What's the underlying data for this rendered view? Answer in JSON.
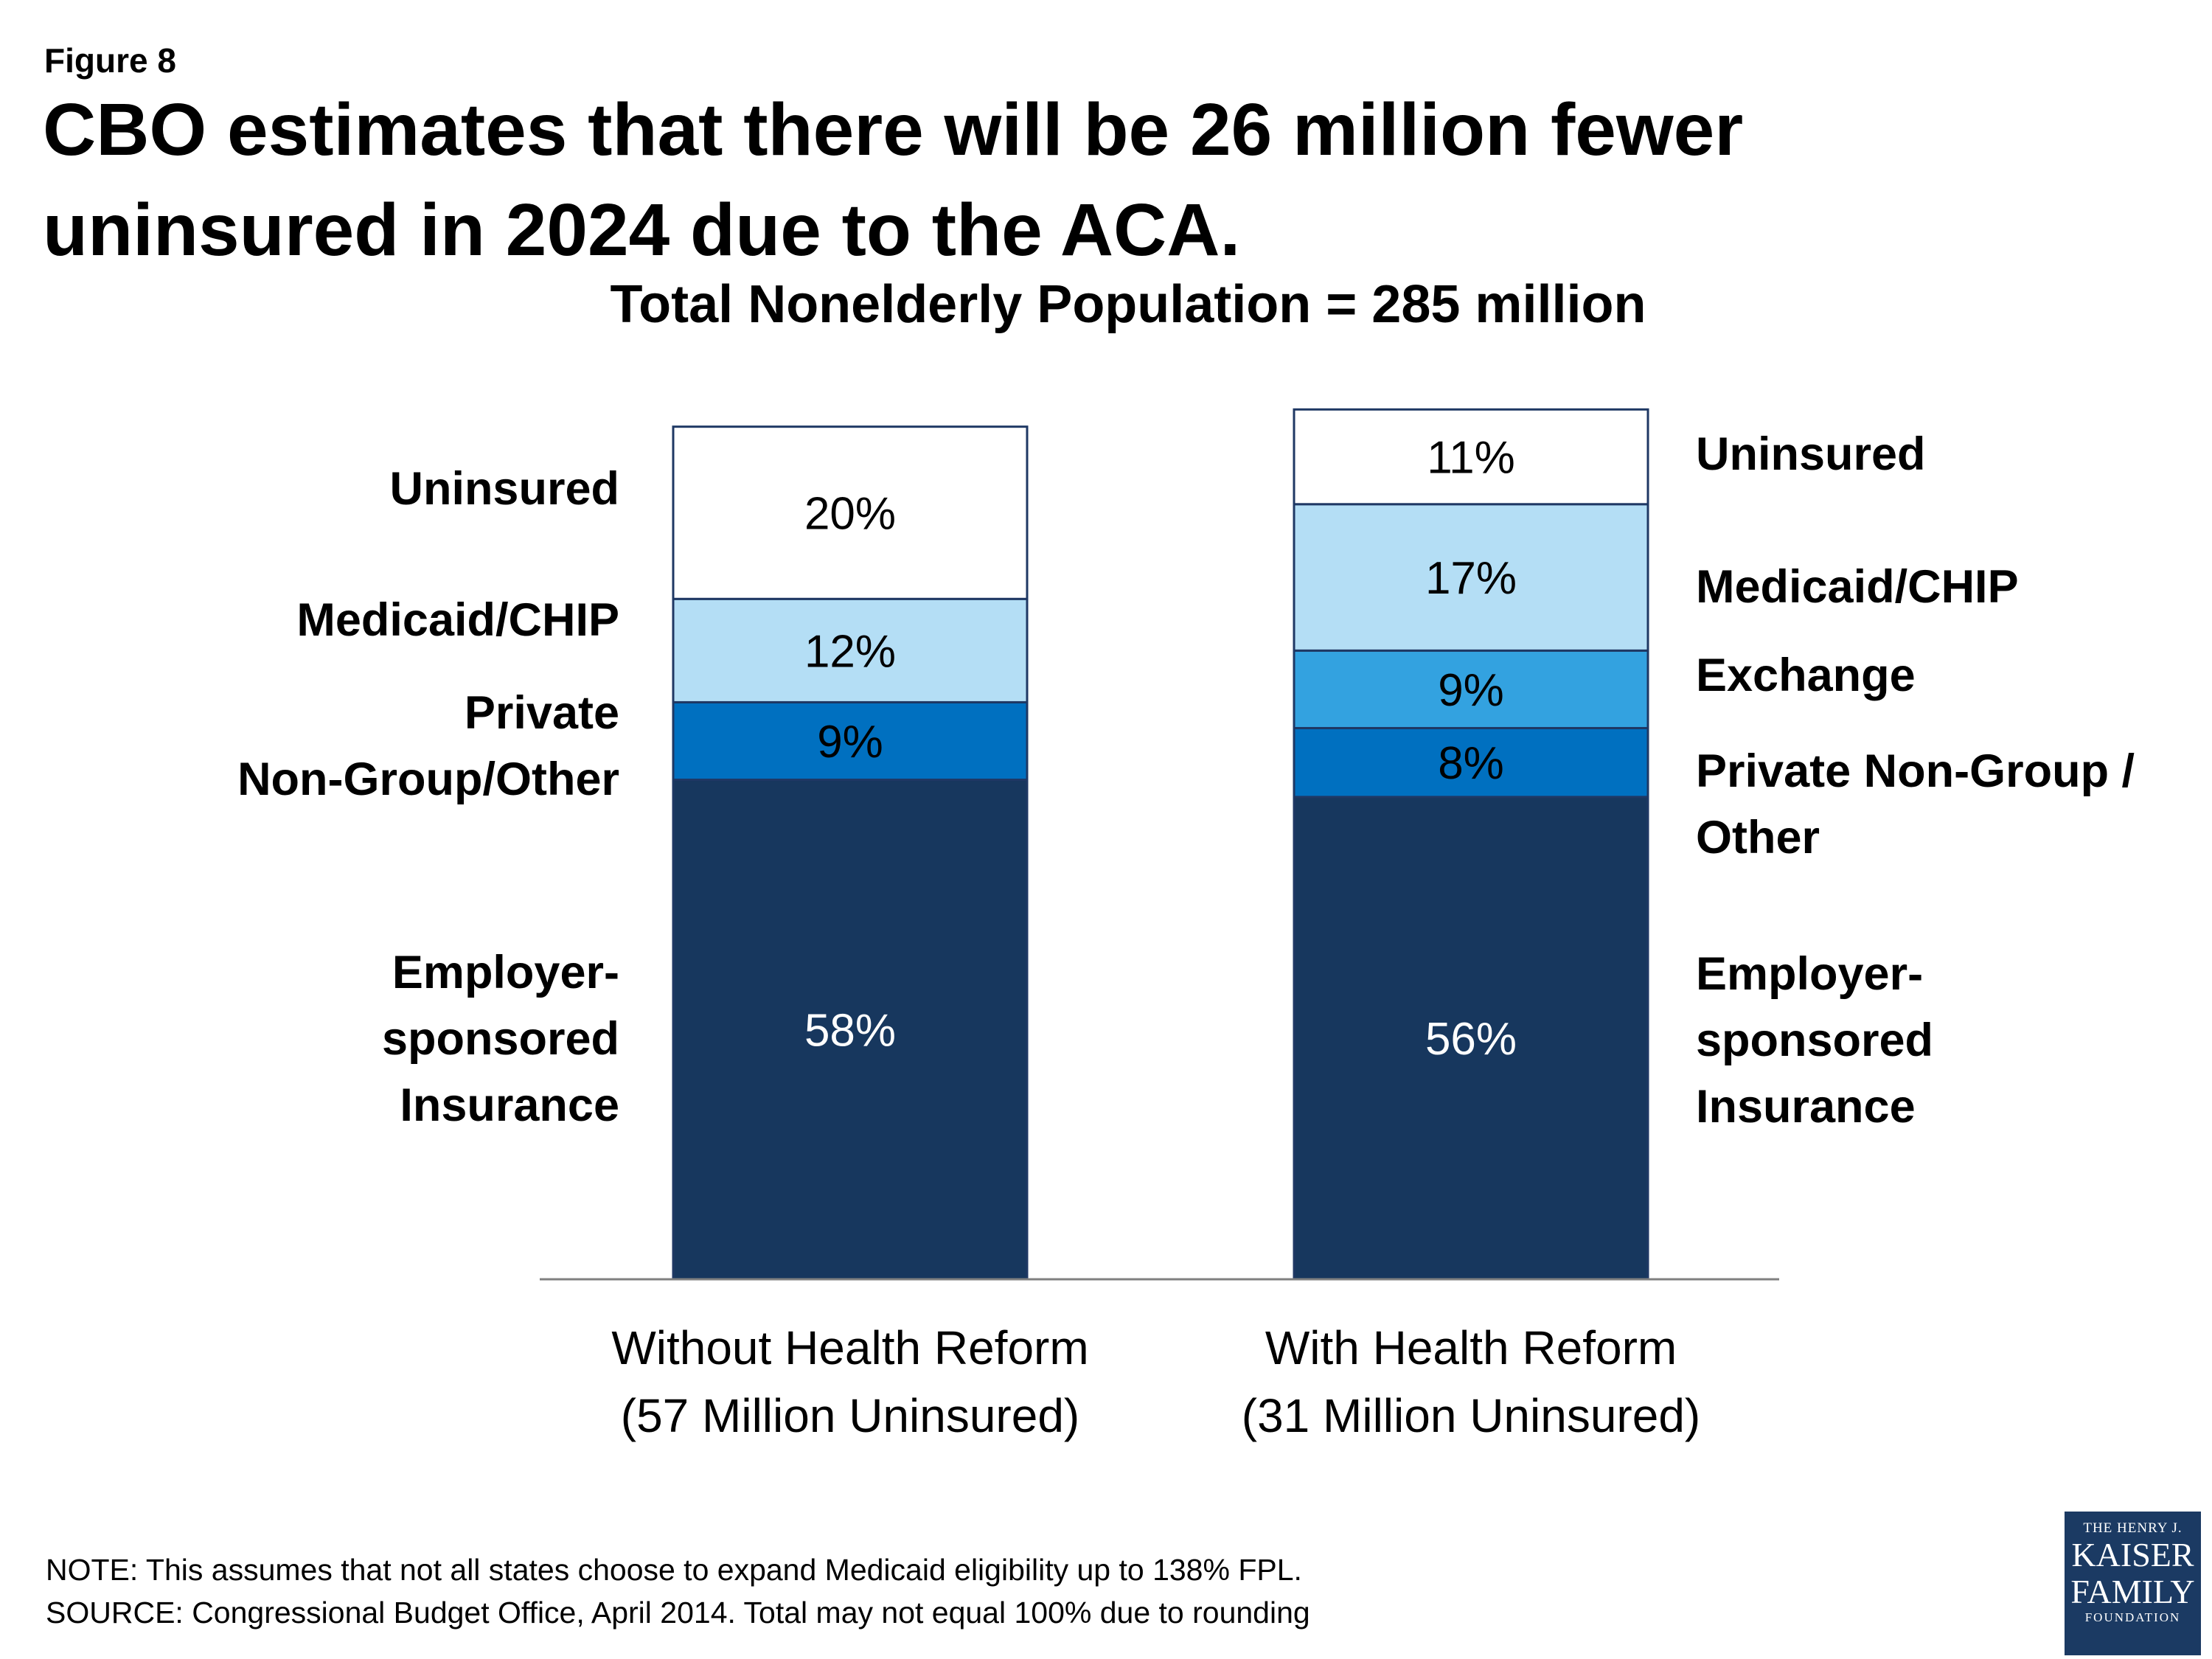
{
  "header": {
    "figure_label": "Figure 8",
    "title": "CBO estimates that there will be 26 million fewer uninsured in 2024 due to the ACA.",
    "subtitle": "Total Nonelderly Population = 285 million"
  },
  "chart_data": {
    "type": "bar",
    "stacked": true,
    "title": "Total Nonelderly Population = 285 million",
    "ylim": [
      0,
      100
    ],
    "categories": [
      [
        "Without Health Reform",
        "(57 Million Uninsured)"
      ],
      [
        "With Health Reform",
        "(31 Million Uninsured)"
      ]
    ],
    "series": [
      {
        "name": "Employer-sponsored Insurance",
        "values": [
          58,
          56
        ],
        "labels": [
          "58%",
          "56%"
        ],
        "color": "#17375e",
        "label_color": "#ffffff"
      },
      {
        "name": "Private Non-Group/Other",
        "values": [
          9,
          8
        ],
        "labels": [
          "9%",
          "8%"
        ],
        "color": "#0070c0",
        "label_color": "#000000"
      },
      {
        "name": "Exchange",
        "values": [
          0,
          9
        ],
        "labels": [
          "",
          "9%"
        ],
        "color": "#33a2e0",
        "label_color": "#000000"
      },
      {
        "name": "Medicaid/CHIP",
        "values": [
          12,
          17
        ],
        "labels": [
          "12%",
          "17%"
        ],
        "color": "#b4def5",
        "label_color": "#000000"
      },
      {
        "name": "Uninsured",
        "values": [
          20,
          11
        ],
        "labels": [
          "20%",
          "11%"
        ],
        "color": "#ffffff",
        "label_color": "#000000"
      }
    ],
    "left_labels": [
      {
        "series": "Uninsured",
        "lines": [
          "Uninsured"
        ]
      },
      {
        "series": "Medicaid/CHIP",
        "lines": [
          "Medicaid/CHIP"
        ]
      },
      {
        "series": "Private Non-Group/Other",
        "lines": [
          "Private",
          "Non-Group/Other"
        ]
      },
      {
        "series": "Employer-sponsored Insurance",
        "lines": [
          "Employer-",
          "sponsored",
          "Insurance"
        ]
      }
    ],
    "right_labels": [
      {
        "series": "Uninsured",
        "lines": [
          "Uninsured"
        ]
      },
      {
        "series": "Medicaid/CHIP",
        "lines": [
          "Medicaid/CHIP"
        ]
      },
      {
        "series": "Exchange",
        "lines": [
          "Exchange"
        ]
      },
      {
        "series": "Private Non-Group/Other",
        "lines": [
          "Private Non-Group /",
          "Other"
        ]
      },
      {
        "series": "Employer-sponsored Insurance",
        "lines": [
          "Employer-",
          "sponsored",
          "Insurance"
        ]
      }
    ],
    "border_color": "#1f3864",
    "axis_color": "#808080"
  },
  "footer": {
    "note": "NOTE: This assumes that not all states choose to expand Medicaid eligibility up to 138% FPL.",
    "source": "SOURCE:  Congressional Budget Office, April 2014. Total may not equal 100% due to rounding"
  },
  "logo": {
    "line1": "THE HENRY J.",
    "line2": "KAISER",
    "line3": "FAMILY",
    "line4": "FOUNDATION"
  }
}
